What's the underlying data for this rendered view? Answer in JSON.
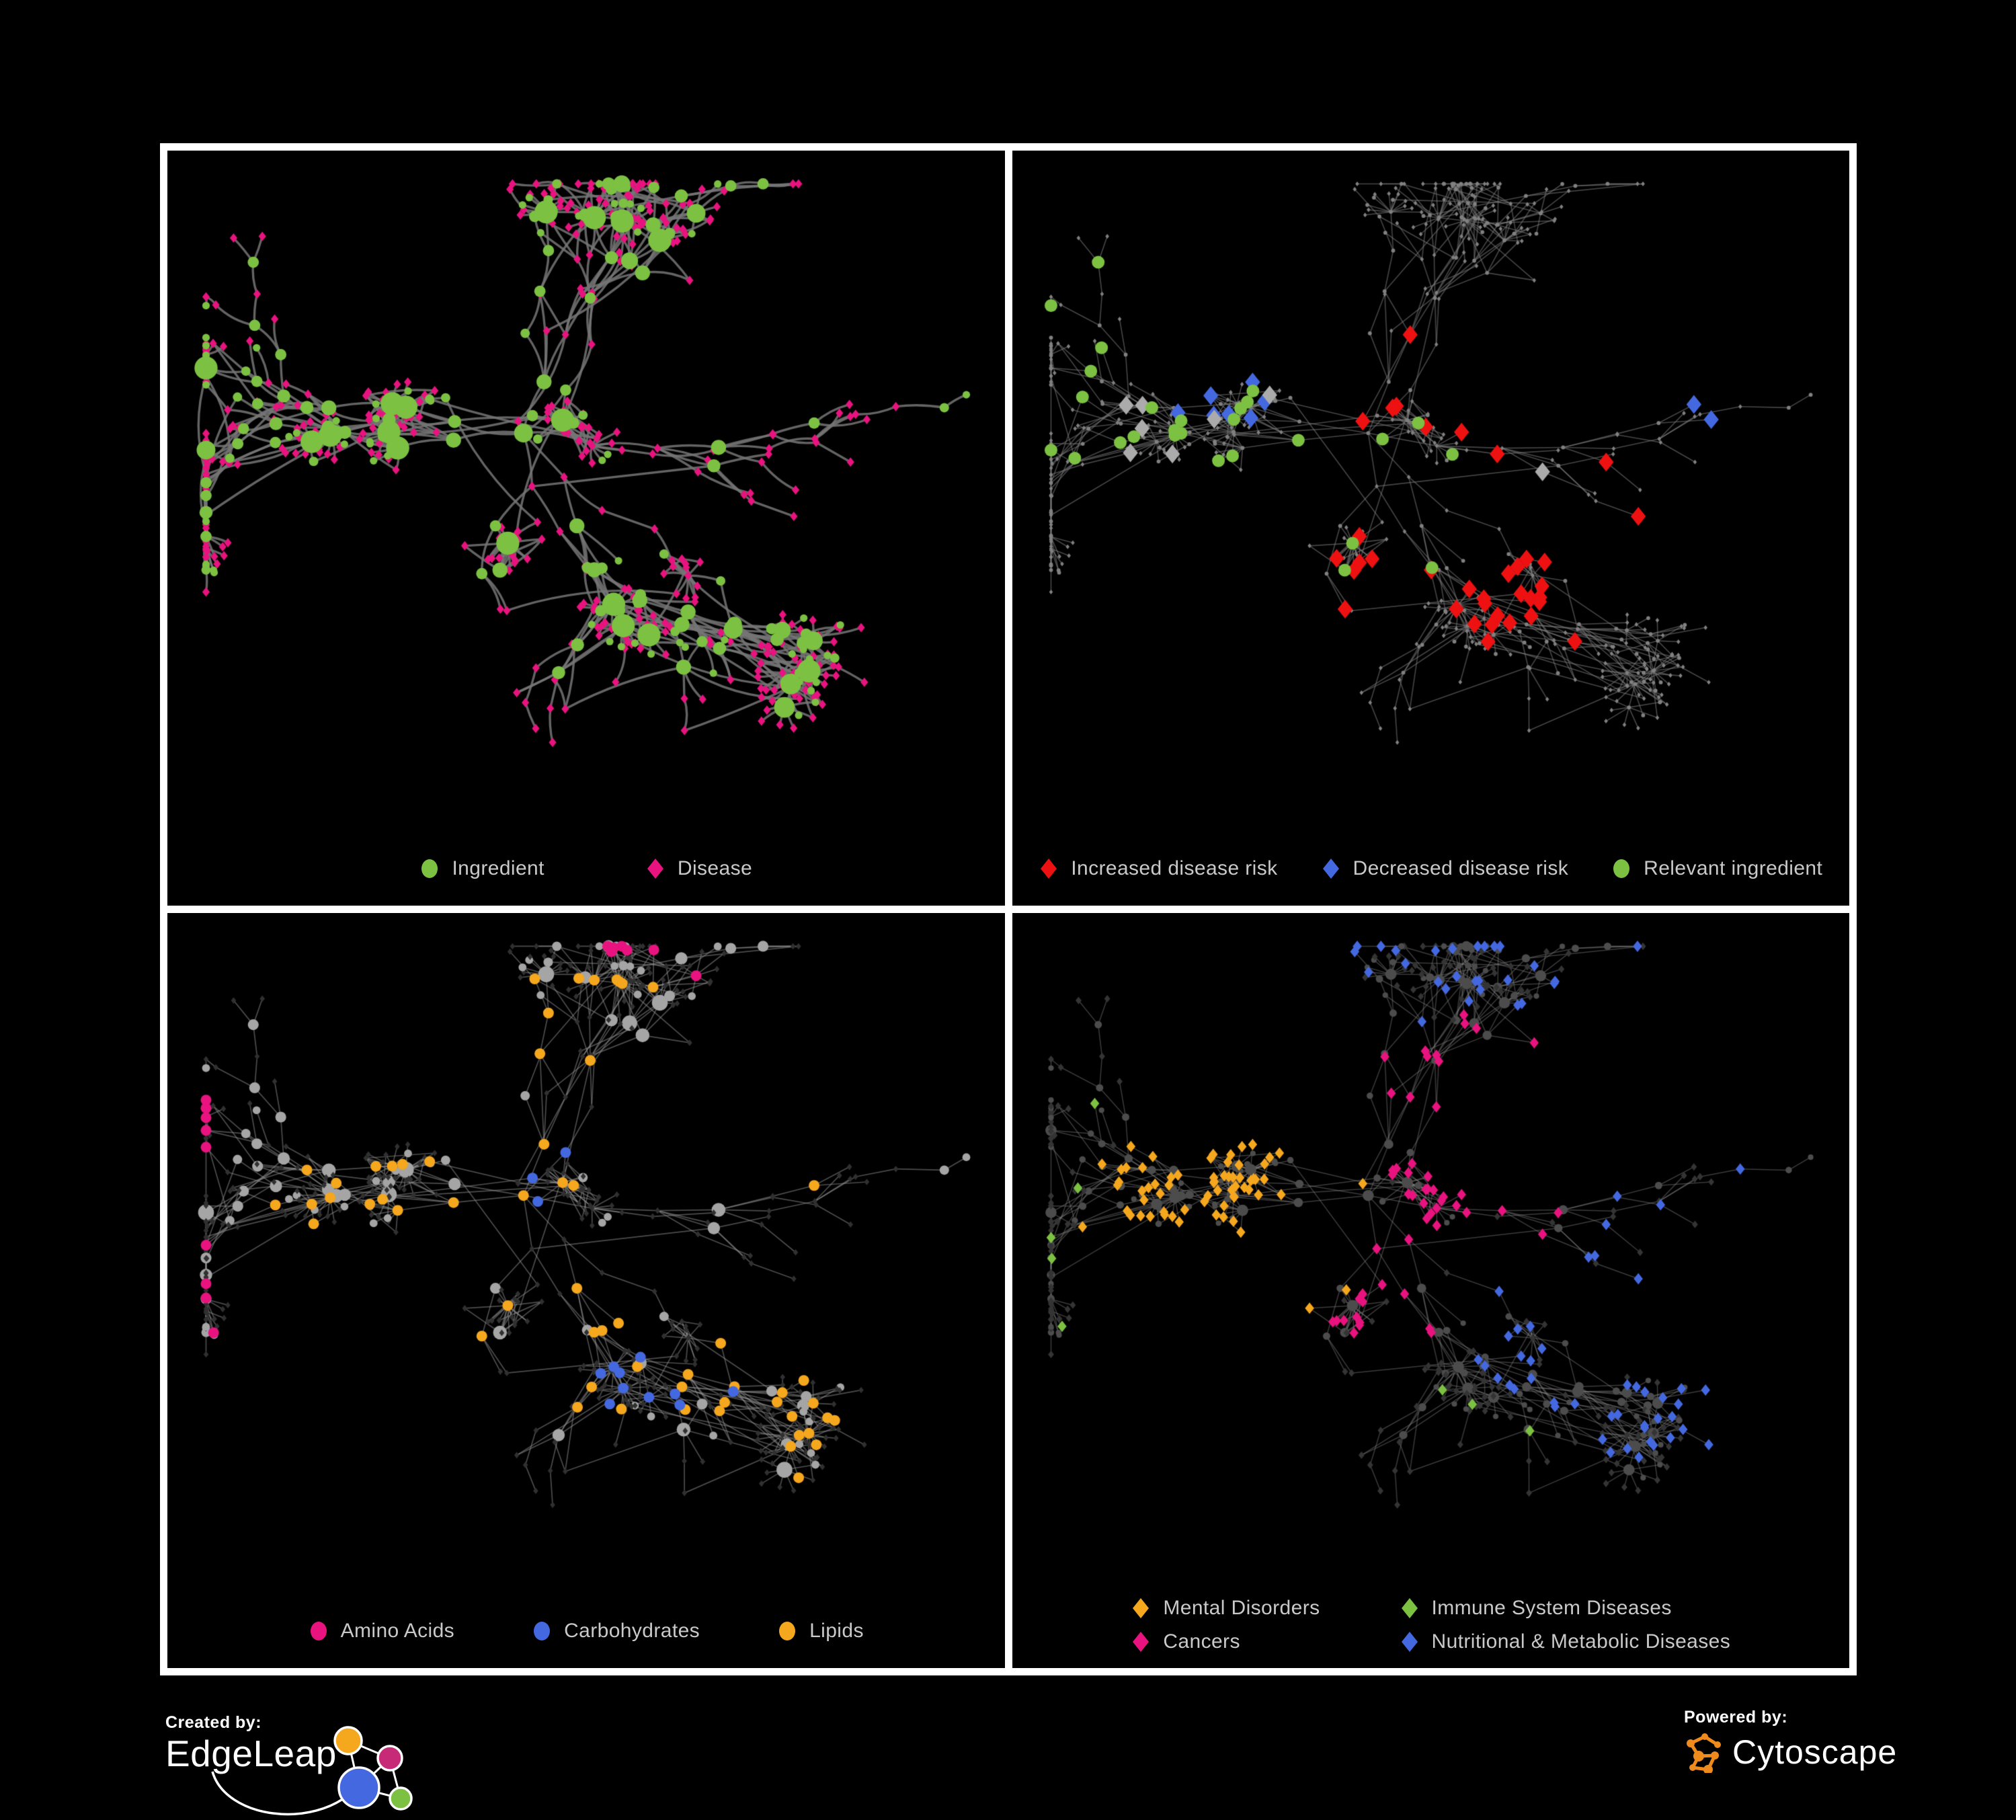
{
  "poster": {
    "background": "#000000",
    "frame_color": "#FFFFFF",
    "legend_text_color": "#C9C9C9"
  },
  "panels": [
    {
      "id": "ingredient-disease-network",
      "legend": [
        {
          "label": "Ingredient",
          "shape": "circle",
          "color": "#7CC142"
        },
        {
          "label": "Disease",
          "shape": "diamond",
          "color": "#E8137F"
        }
      ],
      "style": {
        "mode": "full",
        "curved": true,
        "edge_color": "rgba(117,117,117,0.85)",
        "edge_width": 3.4,
        "ingredient_color": "#7CC142",
        "disease_color": "#E8137F"
      }
    },
    {
      "id": "disease-risk-network",
      "legend": [
        {
          "label": "Increased disease risk",
          "shape": "diamond",
          "color": "#EE1111"
        },
        {
          "label": "Decreased disease risk",
          "shape": "diamond",
          "color": "#4468DF"
        },
        {
          "label": "Relevant ingredient",
          "shape": "circle",
          "color": "#7CC142"
        }
      ],
      "style": {
        "mode": "highlight",
        "curved": false,
        "edge_color": "rgba(128,128,128,0.55)",
        "edge_width": 1.6,
        "base_color": "#808080",
        "rules": [
          {
            "shape": "diamond",
            "color": "#EE1111",
            "count": 36,
            "centers": [
              [
                0.47,
                0.38,
                0.14
              ],
              [
                0.4,
                0.57,
                0.13
              ],
              [
                0.63,
                0.62,
                0.12
              ],
              [
                0.79,
                0.52,
                0.14
              ]
            ]
          },
          {
            "shape": "diamond",
            "color": "#4468DF",
            "count": 9,
            "centers": [
              [
                0.27,
                0.36,
                0.12
              ],
              [
                0.88,
                0.27,
                0.12
              ]
            ]
          },
          {
            "shape": "diamond",
            "color": "#ABABAB",
            "count": 8,
            "centers": [
              [
                0.27,
                0.36,
                0.17
              ],
              [
                0.5,
                0.45,
                0.2
              ],
              [
                0.66,
                0.6,
                0.13
              ]
            ]
          },
          {
            "shape": "circle",
            "color": "#7CC142",
            "count": 27,
            "centers": [
              [
                0.27,
                0.36,
                0.14
              ],
              [
                0.47,
                0.38,
                0.14
              ],
              [
                0.4,
                0.57,
                0.13
              ],
              [
                0.18,
                0.3,
                0.25
              ]
            ]
          }
        ]
      }
    },
    {
      "id": "nutrient-class-network",
      "legend": [
        {
          "label": "Amino Acids",
          "shape": "circle",
          "color": "#E8137F"
        },
        {
          "label": "Carbohydrates",
          "shape": "circle",
          "color": "#4468DF"
        },
        {
          "label": "Lipids",
          "shape": "circle",
          "color": "#F5A71E"
        }
      ],
      "style": {
        "mode": "classes",
        "curved": false,
        "edge_color": "rgba(152,152,152,0.5)",
        "edge_width": 1.7,
        "ingredient_color": "#A5A5A5",
        "disease_color": "#303030",
        "rules": [
          {
            "shape": "circle",
            "color": "#F5A71E",
            "count": 58,
            "centers": [
              [
                0.47,
                0.38,
                0.11
              ],
              [
                0.4,
                0.57,
                0.11
              ],
              [
                0.33,
                0.3,
                0.12
              ],
              [
                0.5,
                0.5,
                0.45
              ]
            ]
          },
          {
            "shape": "circle",
            "color": "#4468DF",
            "count": 13,
            "centers": [
              [
                0.47,
                0.36,
                0.1
              ],
              [
                0.6,
                0.55,
                0.2
              ]
            ]
          },
          {
            "shape": "circle",
            "color": "#E8137F",
            "count": 16,
            "centers": [
              [
                0.5,
                0.5,
                0.55
              ]
            ]
          }
        ]
      }
    },
    {
      "id": "disease-class-network",
      "legend": [
        {
          "label": "Mental Disorders",
          "shape": "diamond",
          "color": "#F5A71E"
        },
        {
          "label": "Immune System Diseases",
          "shape": "diamond",
          "color": "#7CC142"
        },
        {
          "label": "Cancers",
          "shape": "diamond",
          "color": "#E8137F"
        },
        {
          "label": "Nutritional & Metabolic Diseases",
          "shape": "diamond",
          "color": "#4468DF"
        }
      ],
      "style": {
        "mode": "classes4",
        "curved": false,
        "edge_color": "rgba(140,140,140,0.42)",
        "edge_width": 1.5,
        "ingredient_color": "#4C4C4C",
        "disease_color": "#343434",
        "rules": [
          {
            "shape": "diamond",
            "color": "#F5A71E",
            "count": 85,
            "centers": [
              [
                0.27,
                0.36,
                0.16
              ],
              [
                0.2,
                0.44,
                0.15
              ],
              [
                0.3,
                0.47,
                0.12
              ]
            ]
          },
          {
            "shape": "diamond",
            "color": "#E8137F",
            "count": 52,
            "centers": [
              [
                0.47,
                0.4,
                0.12
              ],
              [
                0.42,
                0.56,
                0.1
              ],
              [
                0.56,
                0.3,
                0.18
              ]
            ]
          },
          {
            "shape": "diamond",
            "color": "#4468DF",
            "count": 72,
            "centers": [
              [
                0.63,
                0.6,
                0.11
              ],
              [
                0.76,
                0.35,
                0.24
              ],
              [
                0.84,
                0.6,
                0.24
              ],
              [
                0.6,
                0.18,
                0.28
              ]
            ]
          },
          {
            "shape": "diamond",
            "color": "#7CC142",
            "count": 8,
            "centers": [
              [
                0.5,
                0.5,
                0.5
              ]
            ]
          }
        ]
      }
    }
  ],
  "network": {
    "seed": 20,
    "root": [
      0.42,
      0.4
    ],
    "arms": 7,
    "backbone": 310,
    "cores": [
      [
        0.27,
        0.36,
        20,
        0.05
      ],
      [
        0.47,
        0.38,
        22,
        0.05
      ],
      [
        0.4,
        0.57,
        18,
        0.045
      ],
      [
        0.63,
        0.62,
        12,
        0.04
      ]
    ],
    "bursts": 28,
    "burst_min": 5,
    "burst_max": 14,
    "cross": 70
  },
  "footer": {
    "created_by": "Created by:",
    "edgeleap": "EdgeLeap",
    "powered_by": "Powered by:",
    "cytoscape": "Cytoscape",
    "edgeleap_colors": {
      "orange": "#F5A71E",
      "magenta": "#C72B78",
      "blue": "#4468DF",
      "green": "#7CC142"
    },
    "cytoscape_orange": "#EF8A1C"
  }
}
